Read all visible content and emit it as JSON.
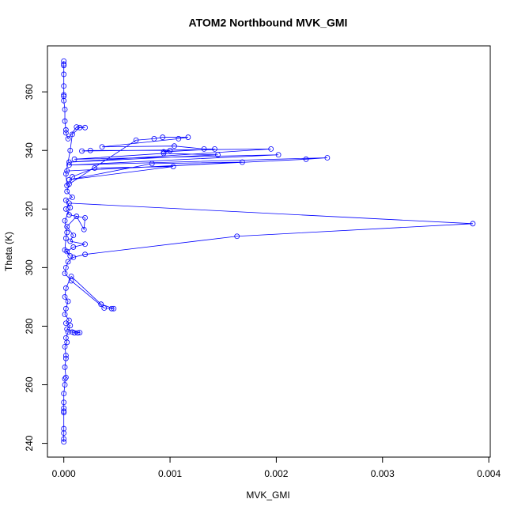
{
  "chart_data": {
    "type": "line",
    "title": "ATOM2 Northbound MVK_GMI",
    "x_label": "MVK_GMI",
    "y_label": "Theta (K)",
    "color": "#0000ff",
    "markers": true,
    "x": [
      0,
      0,
      0,
      0,
      0,
      0,
      0,
      0,
      0,
      1e-05,
      1e-05,
      2e-05,
      1e-05,
      2e-05,
      2e-05,
      1e-05,
      3e-05,
      2e-05,
      4e-05,
      8e-05,
      0.0001,
      0.00013,
      0.00015,
      3e-05,
      6e-05,
      2e-05,
      5e-05,
      1e-05,
      2e-05,
      4e-05,
      1e-05,
      2e-05,
      7e-05,
      0.00035,
      0.00047,
      0.00045,
      0.00038,
      7e-05,
      1e-05,
      2e-05,
      4e-05,
      9e-05,
      0.0002,
      0.00163,
      0.00385,
      5e-05,
      2e-05,
      5e-05,
      0.0002,
      0.00019,
      0.00012,
      3e-05,
      9e-05,
      6e-05,
      0.0002,
      9e-05,
      3e-05,
      6e-05,
      1e-05,
      2e-05,
      3e-05,
      1e-05,
      6e-05,
      2e-05,
      8e-05,
      3e-05,
      5e-05,
      0.00068,
      0.00085,
      0.00093,
      0.00117,
      0.00108,
      0.00036,
      0.00104,
      0.00132,
      0.00142,
      0.00094,
      0.001,
      0.00025,
      0.00017,
      0.00195,
      5e-05,
      0.00145,
      0.00094,
      0.0001,
      0.00202,
      5e-05,
      0.00248,
      0.00228,
      3e-05,
      0.00168,
      0.00083,
      5e-05,
      0.00103,
      0.00029,
      8e-05,
      3e-05,
      2e-05,
      6e-05,
      8e-05,
      0.00015,
      0.0002,
      0.00012,
      4e-05,
      2e-05,
      2e-05,
      1e-05,
      1e-05,
      0,
      0,
      0,
      0,
      0,
      0,
      0,
      0
    ],
    "values": [
      240.5,
      241.5,
      243.5,
      245,
      250.5,
      251,
      252,
      254,
      257,
      260,
      262,
      262.5,
      266,
      269,
      270,
      273,
      274.5,
      276,
      278,
      278,
      277.7,
      277.7,
      277.8,
      279,
      280.2,
      281,
      282,
      284,
      286,
      288.5,
      290,
      293,
      297,
      287.5,
      286,
      286,
      286.2,
      295.5,
      298,
      300,
      302,
      303.5,
      304.5,
      310.7,
      315,
      322,
      320,
      318,
      317,
      313,
      317.5,
      314,
      311,
      309,
      308,
      307,
      305.5,
      304,
      306,
      310,
      312,
      316,
      320.5,
      323,
      324,
      326,
      328.5,
      343.5,
      344,
      344.5,
      344.5,
      344,
      341.2,
      341.5,
      340.5,
      340.5,
      339.5,
      340,
      340,
      339.8,
      340.5,
      336,
      338.5,
      339,
      337,
      338.5,
      335,
      337.5,
      337,
      333,
      336,
      335.5,
      330,
      334.5,
      334,
      331,
      328,
      332,
      340,
      345.5,
      347.8,
      347.8,
      348,
      344,
      346,
      347,
      350,
      354,
      357,
      359,
      358.5,
      362,
      366,
      369,
      369.5,
      370.5
    ],
    "xlim": [
      -0.000154,
      0.004014
    ],
    "xticks": [
      {
        "value": 0,
        "label": "0.000"
      },
      {
        "value": 0.001,
        "label": "0.001"
      },
      {
        "value": 0.002,
        "label": "0.002"
      },
      {
        "value": 0.003,
        "label": "0.003"
      },
      {
        "value": 0.004,
        "label": "0.004"
      }
    ],
    "ylim": [
      235.3,
      375.7
    ],
    "yticks": [
      240,
      260,
      280,
      300,
      320,
      340,
      360
    ]
  }
}
